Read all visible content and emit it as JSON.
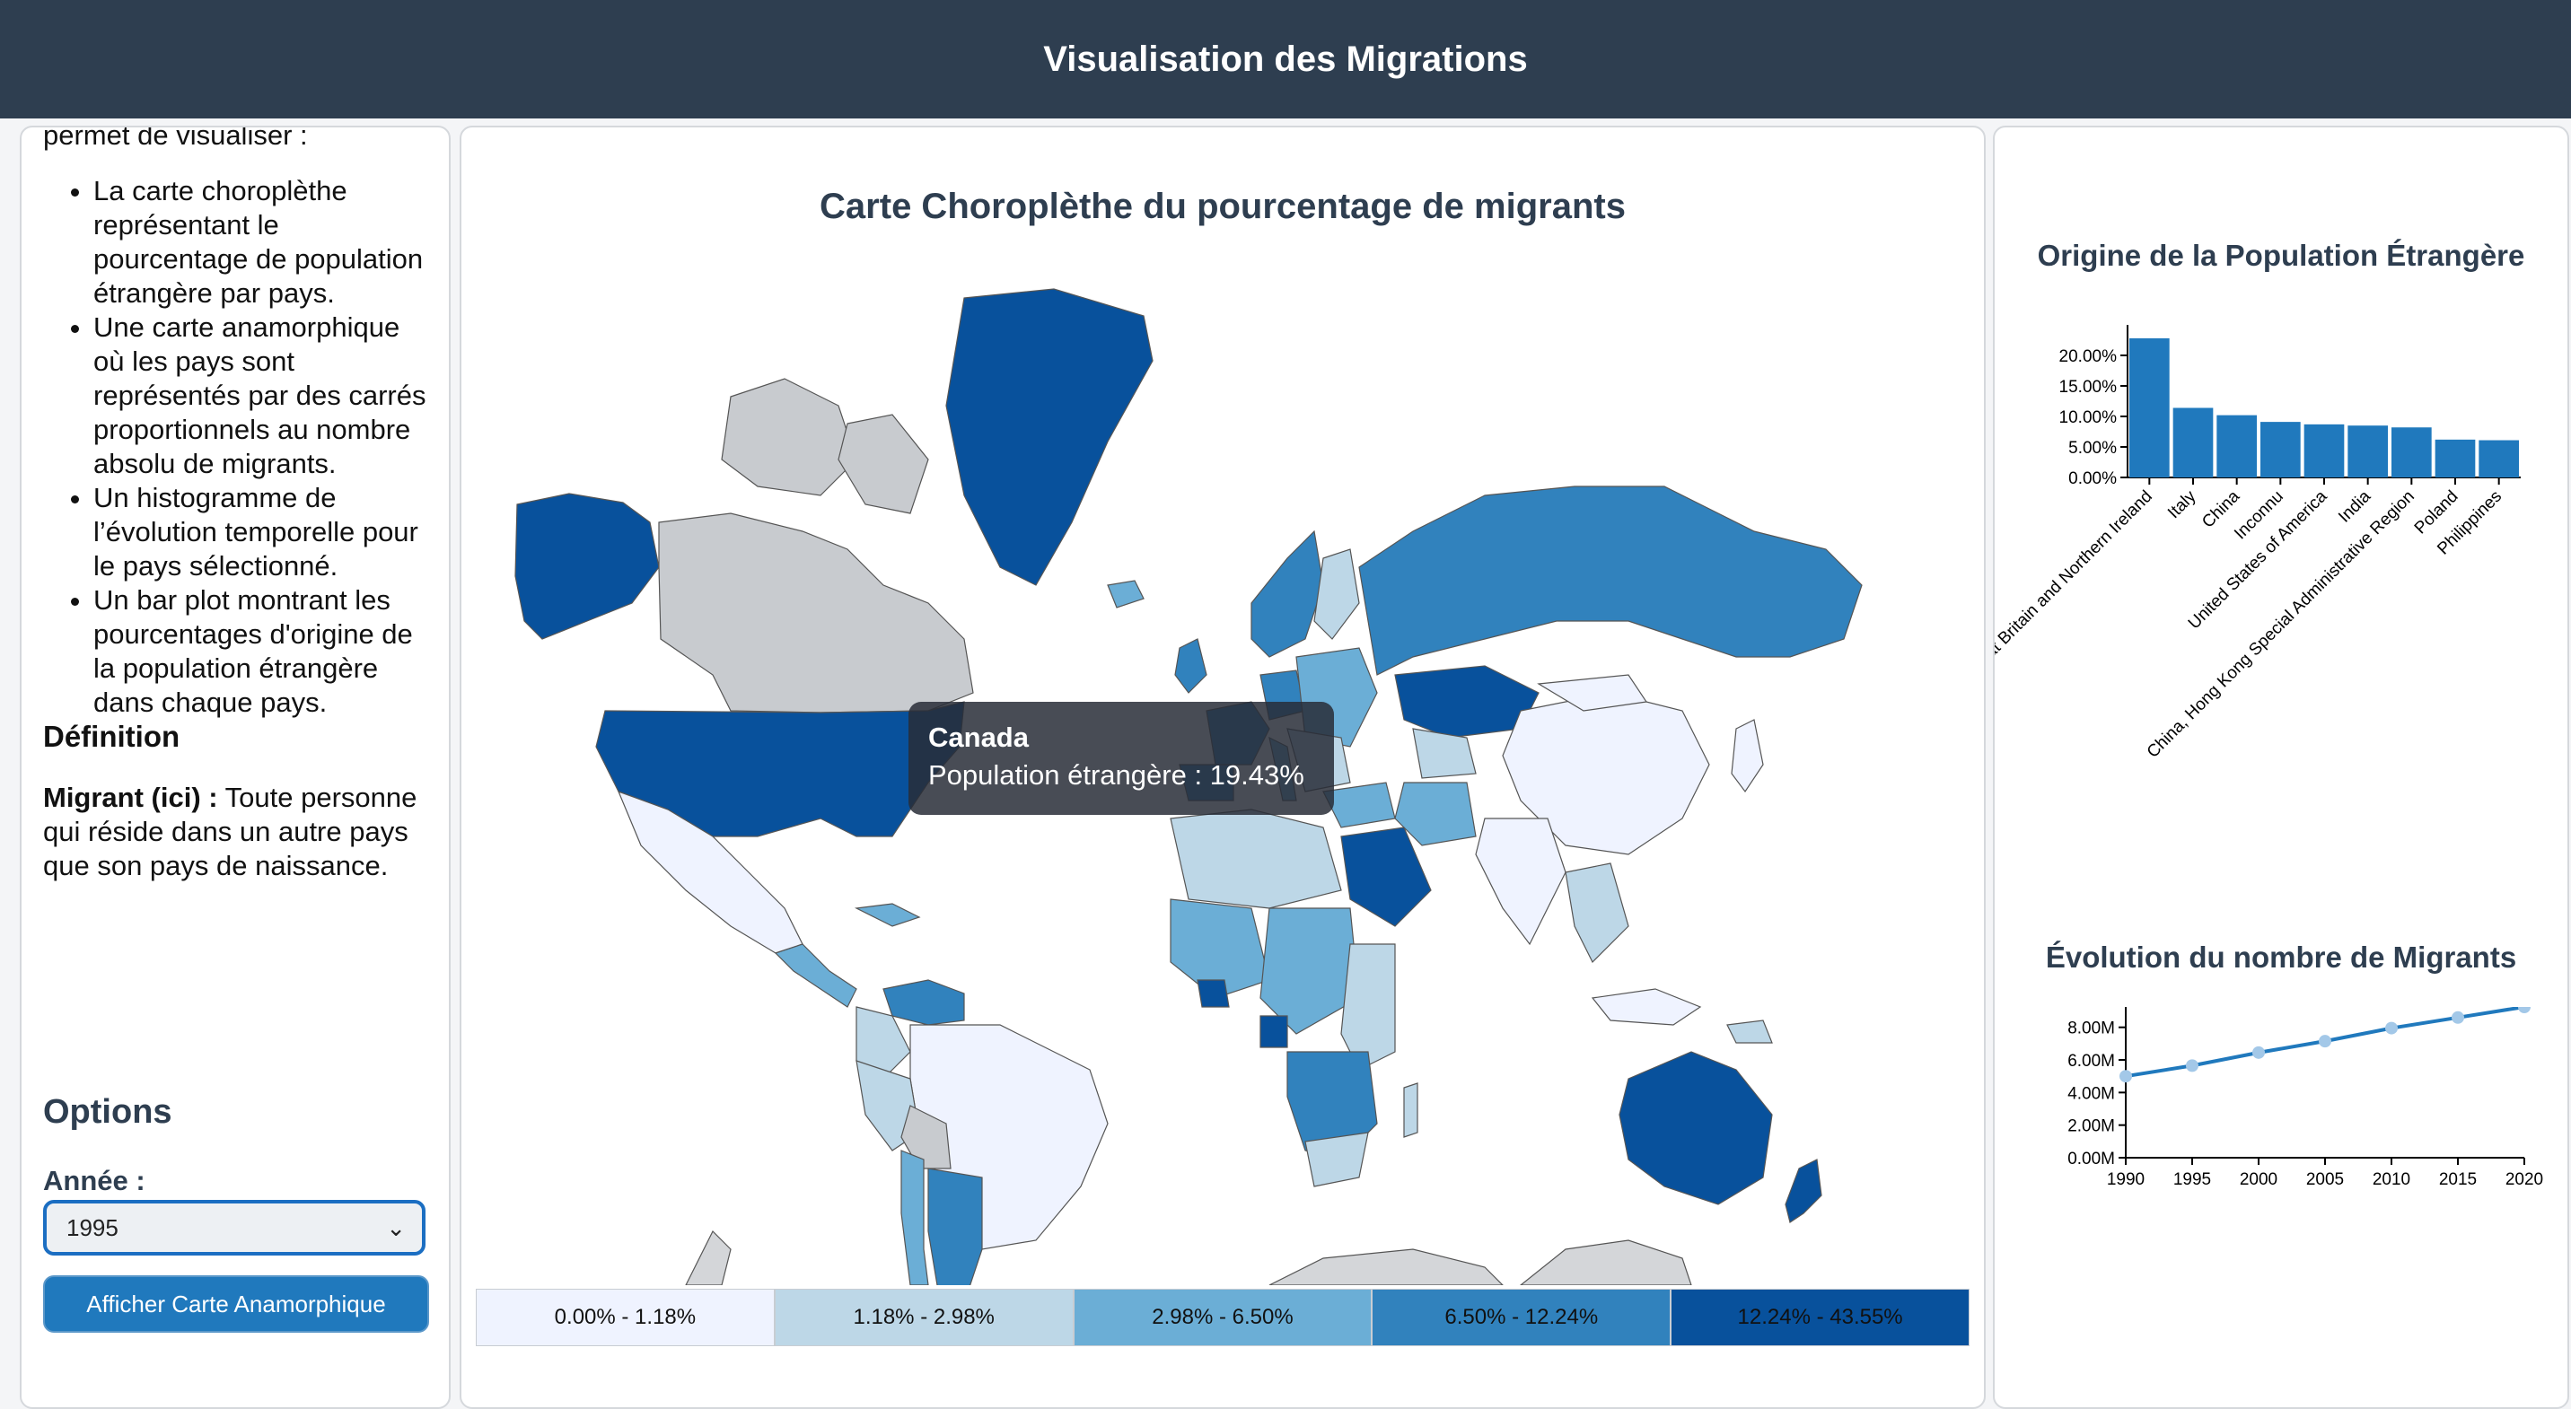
{
  "header": {
    "title": "Visualisation des Migrations"
  },
  "sidebar": {
    "intro_tail": "permet de visualiser :",
    "bullets": [
      "La carte choroplèthe représentant le pourcentage de population étrangère par pays.",
      "Une carte anamorphique où les pays sont représentés par des carrés proportionnels au nombre absolu de migrants.",
      "Un histogramme de l’évolution temporelle pour le pays sélectionné.",
      "Un bar plot montrant les pourcentages d'origine de la population étrangère dans chaque pays."
    ],
    "definition_title": "Définition",
    "definition_term": "Migrant (ici) :",
    "definition_text": " Toute personne qui réside dans un autre pays que son pays de naissance.",
    "options_title": "Options",
    "year_label": "Année :",
    "year_value": "1995",
    "button_label": "Afficher Carte Anamorphique"
  },
  "map": {
    "title": "Carte Choroplèthe du pourcentage de migrants",
    "tooltip": {
      "country": "Canada",
      "text": "Population étrangère : 19.43%"
    },
    "legend": [
      {
        "label": "0.00% - 1.18%",
        "color": "#eff3ff"
      },
      {
        "label": "1.18% - 2.98%",
        "color": "#bdd7e7"
      },
      {
        "label": "2.98% - 6.50%",
        "color": "#6baed6"
      },
      {
        "label": "6.50% - 12.24%",
        "color": "#3182bd"
      },
      {
        "label": "12.24% - 43.55%",
        "color": "#08519c"
      }
    ],
    "no_data_color": "#c8cbcf"
  },
  "chart_data": [
    {
      "type": "bar",
      "title": "Origine de la Population Étrangère",
      "categories": [
        "United Kingdom of Great Britain and Northern Ireland",
        "Italy",
        "China",
        "Inconnu",
        "United States of America",
        "India",
        "China, Hong Kong Special Administrative Region",
        "Poland",
        "Philippines"
      ],
      "values": [
        22.8,
        11.4,
        10.2,
        9.1,
        8.7,
        8.5,
        8.2,
        6.2,
        6.1
      ],
      "yticks": [
        "0.00%",
        "5.00%",
        "10.00%",
        "15.00%",
        "20.00%"
      ],
      "ylim": [
        0,
        25
      ],
      "color": "#2079bd"
    },
    {
      "type": "line",
      "title": "Évolution du nombre de Migrants",
      "x": [
        "1990",
        "1995",
        "2000",
        "2005",
        "2010",
        "2015",
        "2020"
      ],
      "values": [
        5.0,
        5.65,
        6.45,
        7.15,
        7.95,
        8.6,
        9.25
      ],
      "yticks": [
        "0.00M",
        "2.00M",
        "4.00M",
        "6.00M",
        "8.00M"
      ],
      "ylim": [
        0,
        9.25
      ],
      "line_color": "#2079bd",
      "point_color": "#a3c8e8"
    }
  ]
}
